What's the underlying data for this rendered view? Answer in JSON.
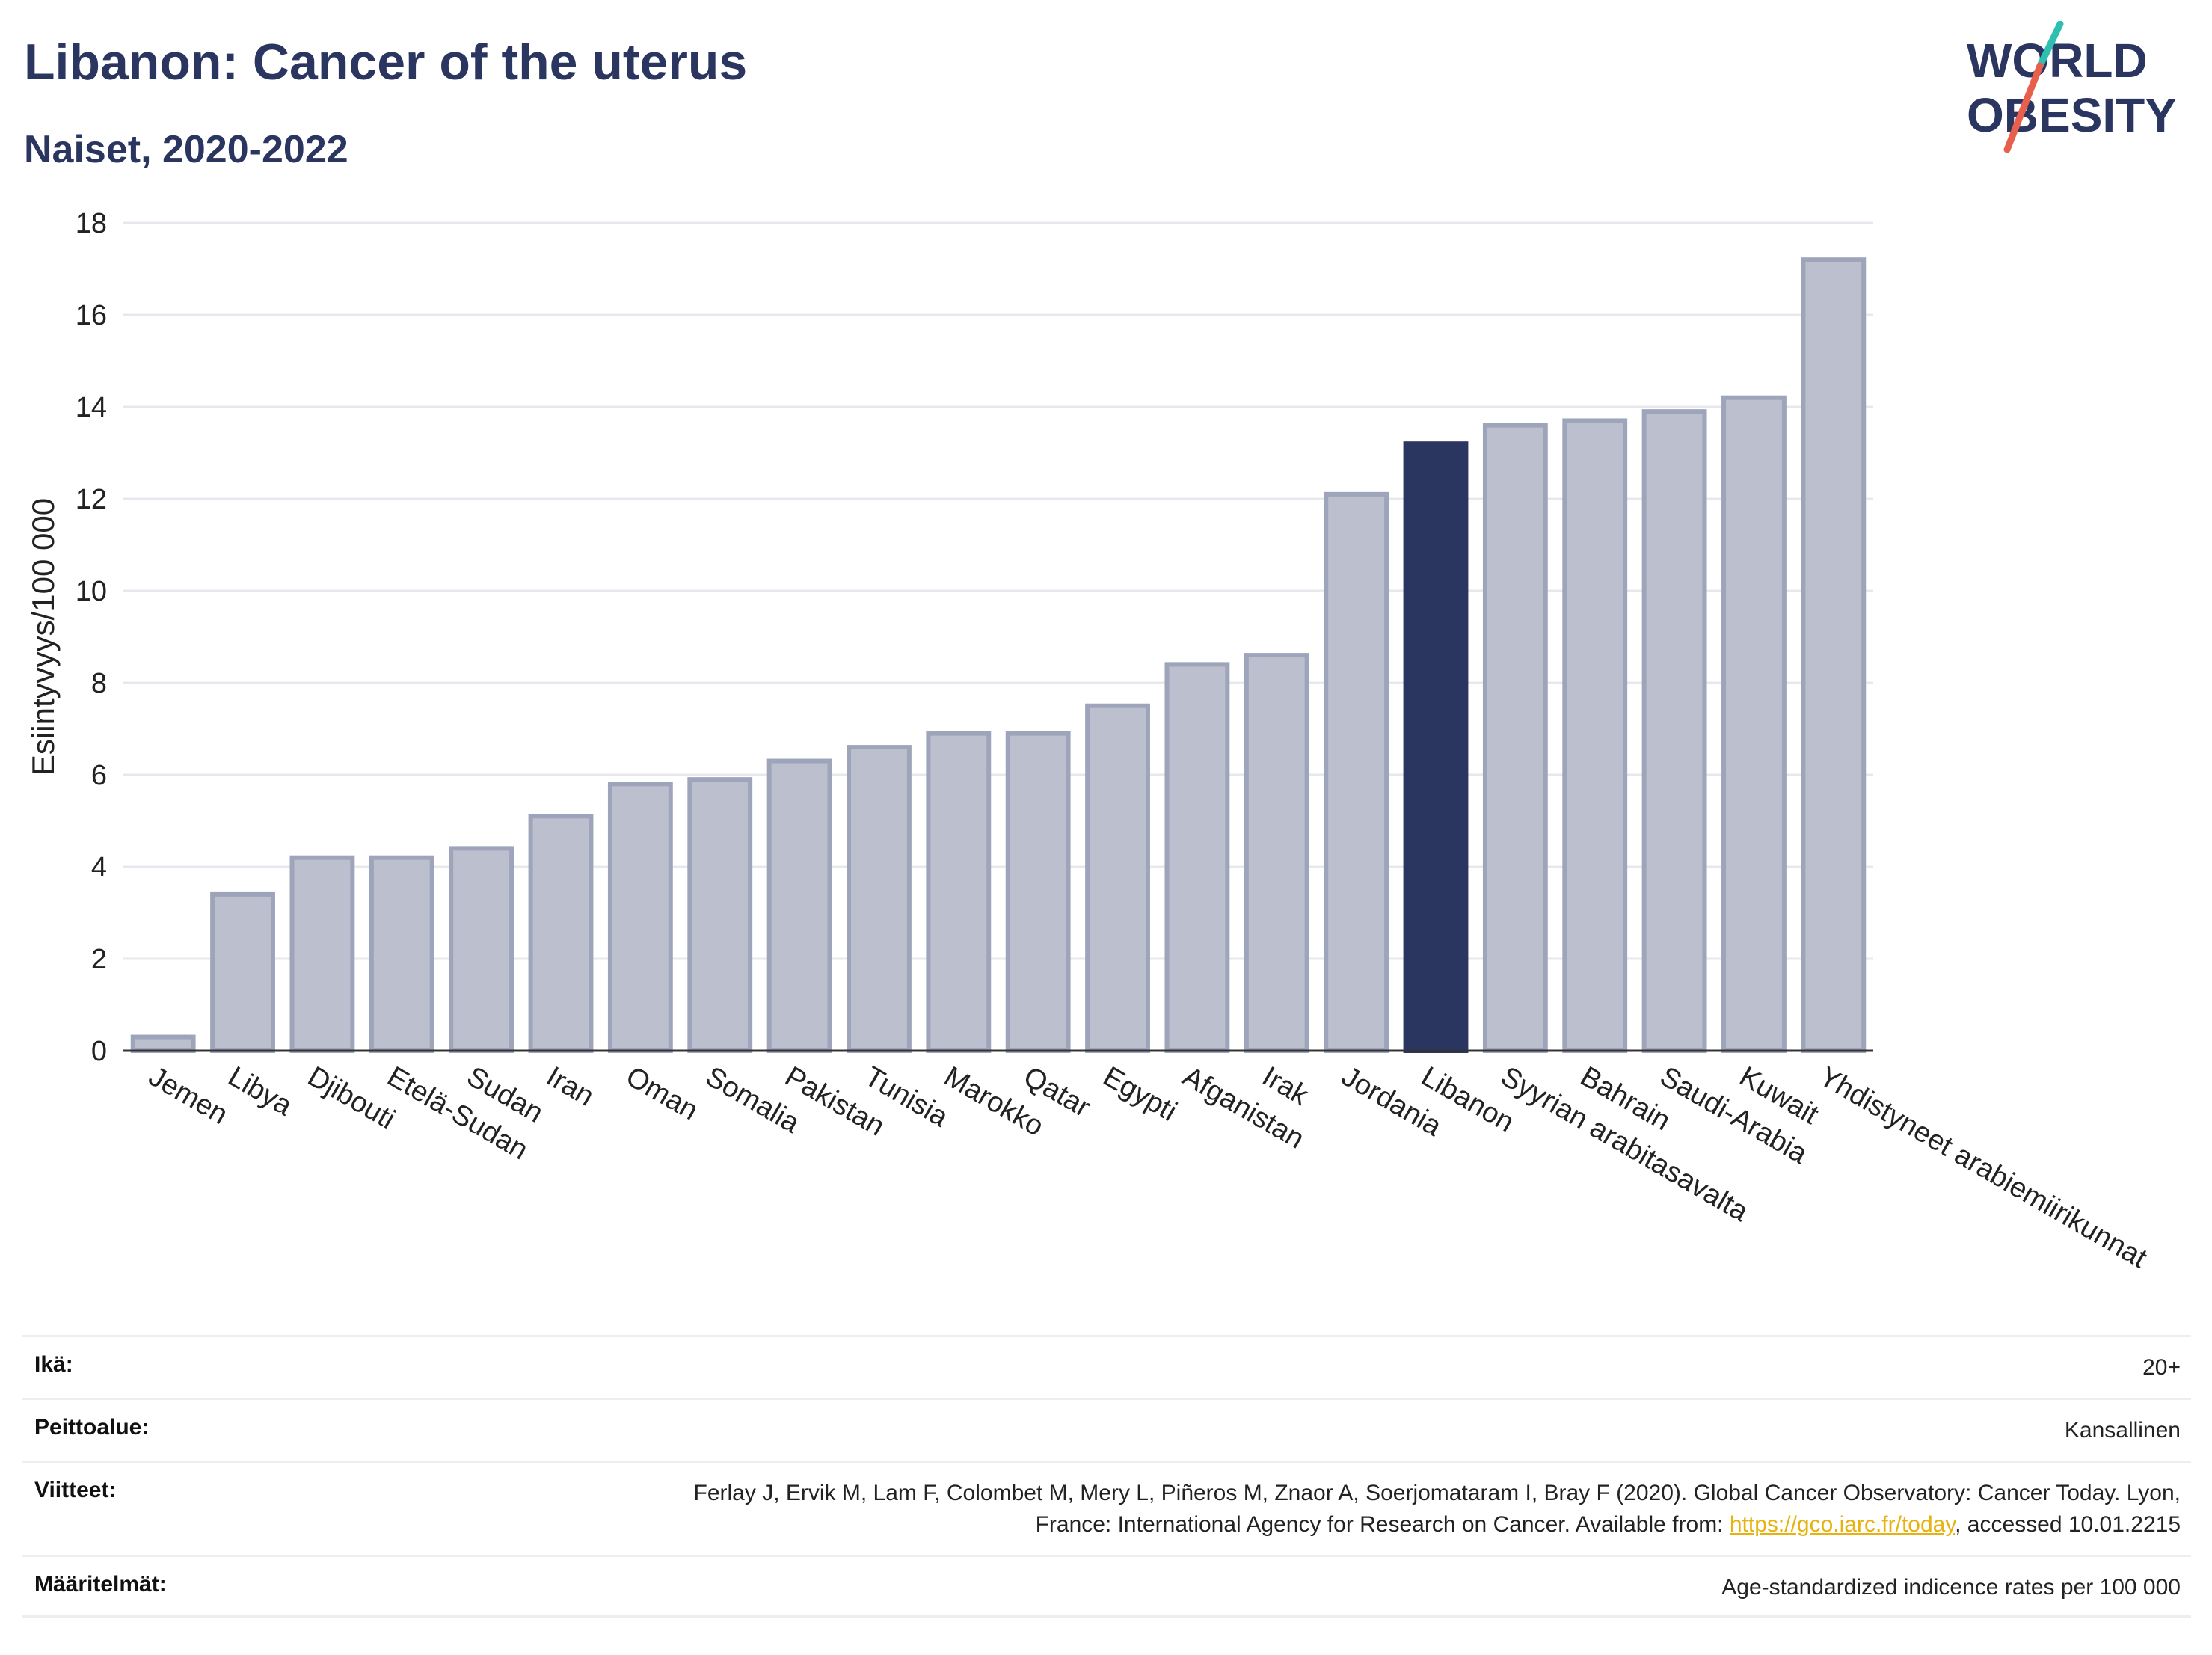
{
  "header": {
    "title": "Libanon: Cancer of the uterus",
    "subtitle": "Naiset, 2020-2022"
  },
  "logo": {
    "line1": "WORLD",
    "line2": "OBESITY",
    "accent_teal": "#2ebfb1",
    "accent_red": "#e8604c",
    "text_color": "#2a3560"
  },
  "chart_data": {
    "type": "bar",
    "ylabel": "Esiintyvyys/100 000",
    "xlabel": "",
    "ylim": [
      0,
      18
    ],
    "yticks": [
      0,
      2,
      4,
      6,
      8,
      10,
      12,
      14,
      16,
      18
    ],
    "grid": true,
    "highlight": "Libanon",
    "colors": {
      "bar": "#bcc0ce",
      "bar_edge": "#9ea4ba",
      "highlight": "#2a3560",
      "axis": "#333333",
      "grid": "#e6e8ee"
    },
    "categories": [
      "Jemen",
      "Libya",
      "Djibouti",
      "Etelä-Sudan",
      "Sudan",
      "Iran",
      "Oman",
      "Somalia",
      "Pakistan",
      "Tunisia",
      "Marokko",
      "Qatar",
      "Egypti",
      "Afganistan",
      "Irak",
      "Jordania",
      "Libanon",
      "Syyrian arabitasavalta",
      "Bahrain",
      "Saudi-Arabia",
      "Kuwait",
      "Yhdistyneet arabiemiirikunnat"
    ],
    "values": [
      0.3,
      3.4,
      4.2,
      4.2,
      4.4,
      5.1,
      5.8,
      5.9,
      6.3,
      6.6,
      6.9,
      6.9,
      7.5,
      8.4,
      8.6,
      12.1,
      13.2,
      13.6,
      13.7,
      13.9,
      14.2,
      17.2
    ]
  },
  "meta": [
    {
      "label": "Ikä:",
      "value": "20+"
    },
    {
      "label": "Peittoalue:",
      "value": "Kansallinen"
    },
    {
      "label": "Viitteet:",
      "value_pre": "Ferlay J, Ervik M, Lam F, Colombet M, Mery L, Piñeros M, Znaor A, Soerjomataram I, Bray F (2020). Global Cancer Observatory: Cancer Today. Lyon, France: International Agency for Research on Cancer. Available from: ",
      "link": "https://gco.iarc.fr/today",
      "value_post": ", accessed 10.01.2215"
    },
    {
      "label": "Määritelmät:",
      "value": "Age-standardized indicence rates per 100 000"
    }
  ]
}
